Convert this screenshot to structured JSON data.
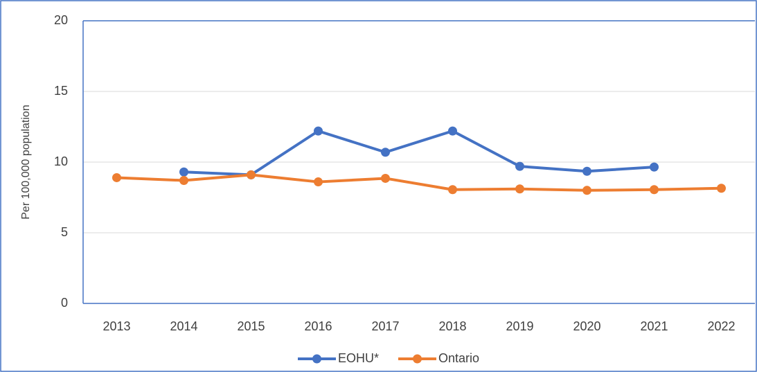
{
  "chart_data": {
    "type": "line",
    "y_label": "Per 100,000 population",
    "categories": [
      "2013",
      "2014",
      "2015",
      "2016",
      "2017",
      "2018",
      "2019",
      "2020",
      "2021",
      "2022"
    ],
    "series": [
      {
        "name": "EOHU*",
        "color": "#4472c4",
        "values": [
          null,
          9.3,
          9.1,
          12.2,
          10.7,
          12.2,
          9.7,
          9.35,
          9.65,
          null
        ]
      },
      {
        "name": "Ontario",
        "color": "#ed7d31",
        "values": [
          8.9,
          8.7,
          9.1,
          8.6,
          8.85,
          8.05,
          8.1,
          8.0,
          8.05,
          8.15
        ]
      }
    ],
    "ylim": [
      0,
      20
    ],
    "yticks": [
      0,
      5,
      10,
      15,
      20
    ],
    "grid": true,
    "legend": "bottom"
  }
}
